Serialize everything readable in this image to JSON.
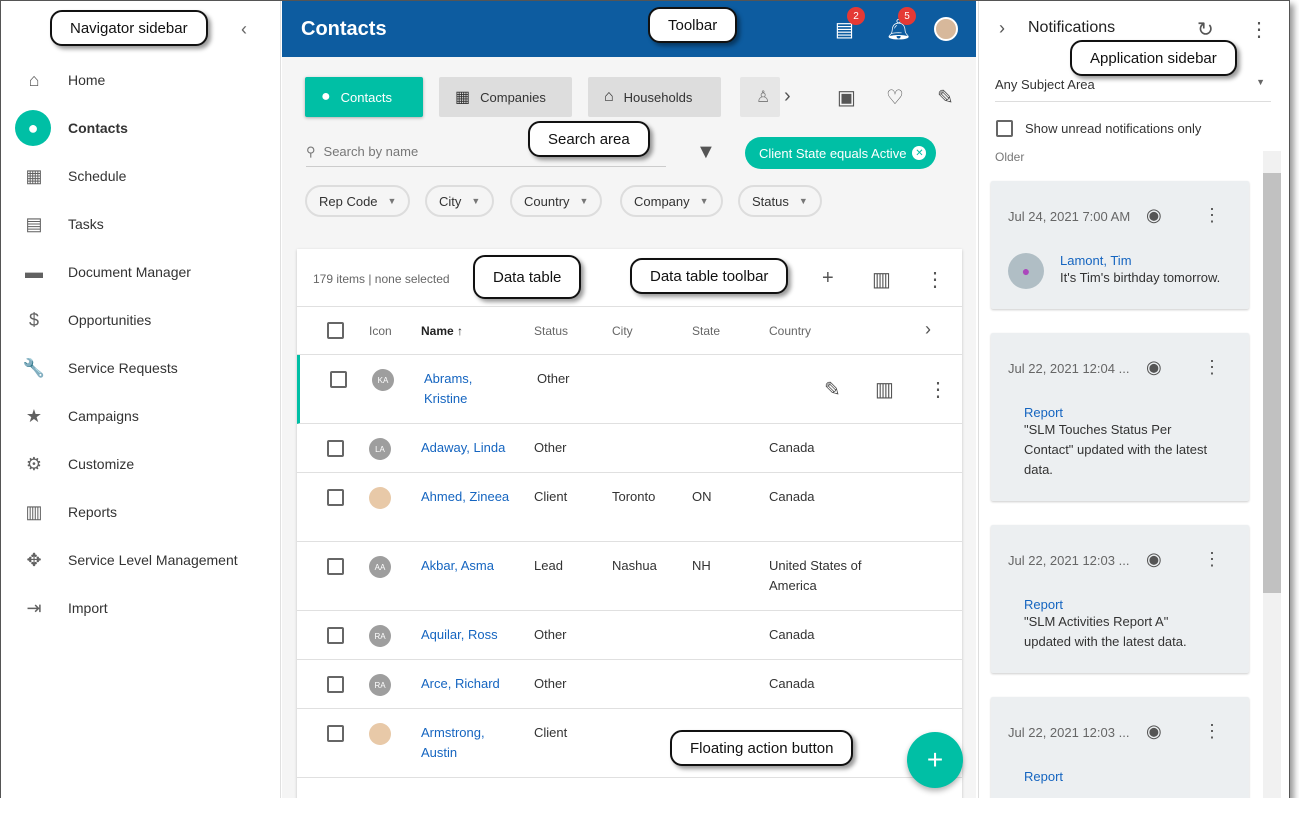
{
  "nav": {
    "items": [
      {
        "label": "Home",
        "icon": "home-icon",
        "glyph": "⌂"
      },
      {
        "label": "Contacts",
        "icon": "contact-icon",
        "glyph": "●",
        "active": true
      },
      {
        "label": "Schedule",
        "icon": "calendar-icon",
        "glyph": "▦"
      },
      {
        "label": "Tasks",
        "icon": "clipboard-icon",
        "glyph": "▤"
      },
      {
        "label": "Document Manager",
        "icon": "folder-icon",
        "glyph": "▬"
      },
      {
        "label": "Opportunities",
        "icon": "dollar-icon",
        "glyph": "$"
      },
      {
        "label": "Service Requests",
        "icon": "wrench-icon",
        "glyph": "🔧"
      },
      {
        "label": "Campaigns",
        "icon": "star-icon",
        "glyph": "★"
      },
      {
        "label": "Customize",
        "icon": "gear-icon",
        "glyph": "⚙"
      },
      {
        "label": "Reports",
        "icon": "chart-icon",
        "glyph": "▥"
      },
      {
        "label": "Service Level Management",
        "icon": "handshake-icon",
        "glyph": "✥"
      },
      {
        "label": "Import",
        "icon": "import-icon",
        "glyph": "⇥"
      }
    ]
  },
  "toolbar": {
    "title": "Contacts",
    "messages_badge": "2",
    "notifications_badge": "5"
  },
  "tabs": [
    {
      "label": "Contacts"
    },
    {
      "label": "Companies"
    },
    {
      "label": "Households"
    }
  ],
  "search": {
    "placeholder": "Search by name",
    "active_filter": "Client State equals Active"
  },
  "filters": [
    "Rep Code",
    "City",
    "Country",
    "Company",
    "Status"
  ],
  "table": {
    "summary": "179 items | none selected",
    "columns": [
      "Icon",
      "Name",
      "Status",
      "City",
      "State",
      "Country"
    ],
    "rows": [
      {
        "initials": "KA",
        "name": "Abrams, Kristine",
        "status": "Other",
        "city": "",
        "state": "",
        "country": ""
      },
      {
        "initials": "LA",
        "name": "Adaway, Linda",
        "status": "Other",
        "city": "",
        "state": "",
        "country": "Canada"
      },
      {
        "initials": "",
        "name": "Ahmed, Zineea",
        "status": "Client",
        "city": "Toronto",
        "state": "ON",
        "country": "Canada"
      },
      {
        "initials": "AA",
        "name": "Akbar, Asma",
        "status": "Lead",
        "city": "Nashua",
        "state": "NH",
        "country": "United States of America"
      },
      {
        "initials": "RA",
        "name": "Aquilar, Ross",
        "status": "Other",
        "city": "",
        "state": "",
        "country": "Canada"
      },
      {
        "initials": "RA",
        "name": "Arce, Richard",
        "status": "Other",
        "city": "",
        "state": "",
        "country": "Canada"
      },
      {
        "initials": "",
        "name": "Armstrong, Austin",
        "status": "Client",
        "city": "",
        "state": "",
        "country": ""
      }
    ]
  },
  "fab": {
    "label": "+"
  },
  "notifications": {
    "title": "Notifications",
    "subject": "Any Subject Area",
    "unread_only": "Show unread notifications only",
    "group": "Older",
    "items": [
      {
        "date": "Jul 24, 2021 7:00 AM",
        "link": "Lamont, Tim",
        "text": "It's Tim's birthday tomorrow."
      },
      {
        "date": "Jul 22, 2021 12:04 ...",
        "link": "Report",
        "text": "\"SLM Touches Status Per Contact\" updated with the latest data."
      },
      {
        "date": "Jul 22, 2021 12:03 ...",
        "link": "Report",
        "text": "\"SLM Activities Report A\" updated with the latest data."
      },
      {
        "date": "Jul 22, 2021 12:03 ...",
        "link": "Report",
        "text": ""
      }
    ]
  },
  "callouts": {
    "navigator": "Navigator sidebar",
    "toolbar": "Toolbar",
    "application": "Application sidebar",
    "search": "Search area",
    "table": "Data table",
    "table_toolbar": "Data table toolbar",
    "fab": "Floating action button"
  },
  "colors": {
    "accent": "#00bfa5",
    "header": "#0d5ca0",
    "link": "#1565c0"
  }
}
